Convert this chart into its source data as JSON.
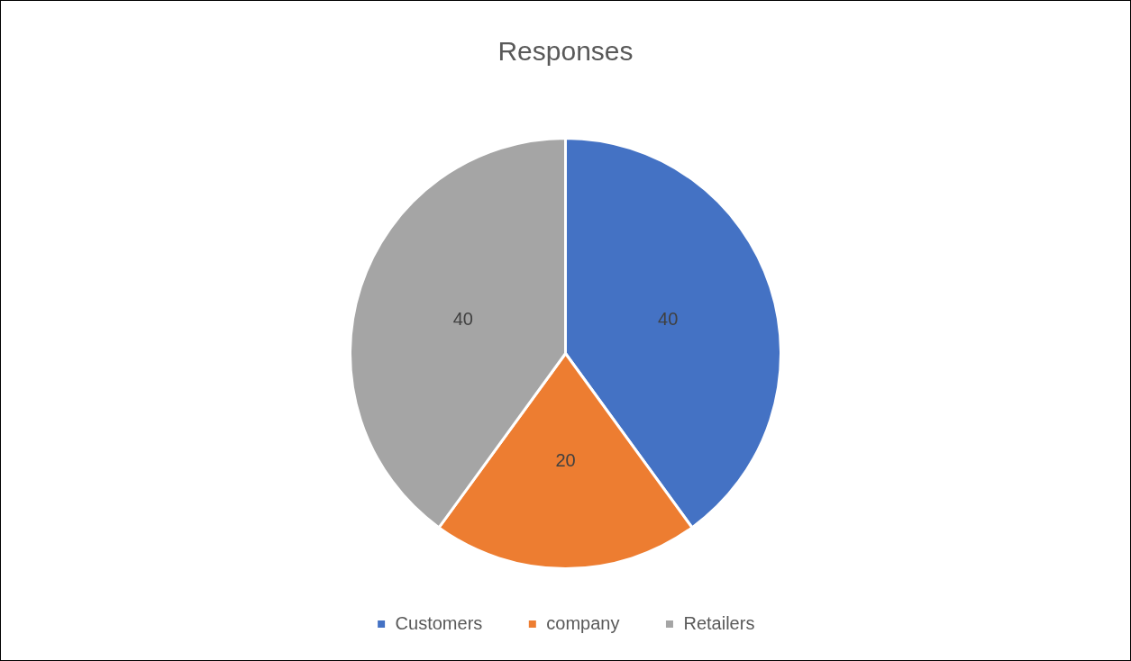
{
  "chart_data": {
    "type": "pie",
    "title": "Responses",
    "categories": [
      "Customers",
      "company",
      "Retailers"
    ],
    "values": [
      40,
      20,
      40
    ],
    "colors": [
      "#4472c4",
      "#ed7d31",
      "#a5a5a5"
    ],
    "data_labels": true,
    "legend": "bottom"
  }
}
